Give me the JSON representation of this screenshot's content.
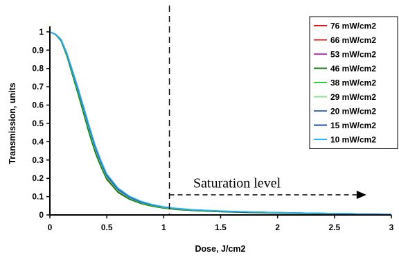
{
  "chart_data": {
    "type": "line",
    "xlabel": "Dose, J/cm2",
    "ylabel": "Transmission, units",
    "xlim": [
      0,
      3
    ],
    "ylim": [
      0,
      1.03
    ],
    "x_ticks": [
      "0",
      "0.5",
      "1",
      "1.5",
      "2",
      "2.5",
      "3"
    ],
    "y_ticks": [
      "0",
      "0.1",
      "0.2",
      "0.3",
      "0.4",
      "0.5",
      "0.6",
      "0.7",
      "0.8",
      "0.9",
      "1"
    ],
    "grid": false,
    "legend_position": "top-right",
    "x": [
      0,
      0.05,
      0.1,
      0.15,
      0.2,
      0.25,
      0.3,
      0.35,
      0.4,
      0.45,
      0.5,
      0.6,
      0.7,
      0.8,
      0.9,
      1.0,
      1.1,
      1.25,
      1.5,
      1.75,
      2.0,
      2.25,
      2.5,
      2.75,
      3.0
    ],
    "series": [
      {
        "name": "76 mW/cm2",
        "color": "#e31a1c",
        "values": [
          1.0,
          0.985,
          0.95,
          0.87,
          0.77,
          0.67,
          0.56,
          0.45,
          0.35,
          0.27,
          0.2,
          0.127,
          0.088,
          0.064,
          0.049,
          0.038,
          0.031,
          0.025,
          0.018,
          0.014,
          0.011,
          0.008,
          0.006,
          0.004,
          0.003
        ]
      },
      {
        "name": "66 mW/cm2",
        "color": "#d62728",
        "values": [
          1.0,
          0.985,
          0.95,
          0.87,
          0.77,
          0.67,
          0.56,
          0.45,
          0.351,
          0.271,
          0.201,
          0.128,
          0.089,
          0.065,
          0.05,
          0.039,
          0.032,
          0.026,
          0.019,
          0.015,
          0.012,
          0.009,
          0.007,
          0.005,
          0.003
        ]
      },
      {
        "name": "53 mW/cm2",
        "color": "#cc33cc",
        "values": [
          1.0,
          0.986,
          0.952,
          0.875,
          0.78,
          0.68,
          0.57,
          0.46,
          0.36,
          0.278,
          0.206,
          0.132,
          0.092,
          0.067,
          0.051,
          0.04,
          0.033,
          0.026,
          0.019,
          0.015,
          0.012,
          0.009,
          0.007,
          0.005,
          0.003
        ]
      },
      {
        "name": "46 mW/cm2",
        "color": "#1a7a1a",
        "values": [
          1.0,
          0.985,
          0.948,
          0.865,
          0.76,
          0.655,
          0.545,
          0.435,
          0.338,
          0.26,
          0.193,
          0.122,
          0.085,
          0.062,
          0.047,
          0.037,
          0.03,
          0.024,
          0.017,
          0.013,
          0.01,
          0.008,
          0.006,
          0.004,
          0.003
        ]
      },
      {
        "name": "38 mW/cm2",
        "color": "#2ecc40",
        "values": [
          1.0,
          0.986,
          0.952,
          0.872,
          0.772,
          0.672,
          0.565,
          0.455,
          0.356,
          0.276,
          0.206,
          0.132,
          0.092,
          0.067,
          0.051,
          0.04,
          0.033,
          0.026,
          0.02,
          0.016,
          0.013,
          0.01,
          0.008,
          0.006,
          0.004
        ]
      },
      {
        "name": "29 mW/cm2",
        "color": "#8ee08e",
        "values": [
          1.0,
          0.986,
          0.953,
          0.875,
          0.776,
          0.676,
          0.569,
          0.46,
          0.36,
          0.28,
          0.21,
          0.135,
          0.094,
          0.069,
          0.053,
          0.042,
          0.034,
          0.027,
          0.02,
          0.016,
          0.013,
          0.01,
          0.008,
          0.006,
          0.004
        ]
      },
      {
        "name": "20 mW/cm2",
        "color": "#3a6fc4",
        "values": [
          1.0,
          0.987,
          0.955,
          0.878,
          0.78,
          0.68,
          0.574,
          0.466,
          0.366,
          0.285,
          0.214,
          0.138,
          0.096,
          0.07,
          0.054,
          0.043,
          0.035,
          0.028,
          0.021,
          0.016,
          0.013,
          0.01,
          0.008,
          0.006,
          0.004
        ]
      },
      {
        "name": "15 mW/cm2",
        "color": "#1f4fa8",
        "values": [
          1.0,
          0.987,
          0.956,
          0.88,
          0.783,
          0.684,
          0.578,
          0.47,
          0.37,
          0.288,
          0.216,
          0.14,
          0.098,
          0.072,
          0.055,
          0.044,
          0.036,
          0.028,
          0.021,
          0.016,
          0.013,
          0.01,
          0.008,
          0.006,
          0.004
        ]
      },
      {
        "name": "10 mW/cm2",
        "color": "#29b6f6",
        "values": [
          1.0,
          0.988,
          0.958,
          0.884,
          0.788,
          0.69,
          0.585,
          0.478,
          0.378,
          0.296,
          0.224,
          0.146,
          0.102,
          0.075,
          0.057,
          0.045,
          0.037,
          0.029,
          0.022,
          0.017,
          0.013,
          0.01,
          0.008,
          0.006,
          0.004
        ]
      }
    ],
    "annotations": [
      {
        "text": "Saturation level",
        "dashed_vline_x": 1.05,
        "arrow_from_x": 1.05,
        "arrow_to_x": 2.78,
        "arrow_y": 0.11,
        "text_x": 1.26,
        "text_y": 0.15
      }
    ]
  }
}
